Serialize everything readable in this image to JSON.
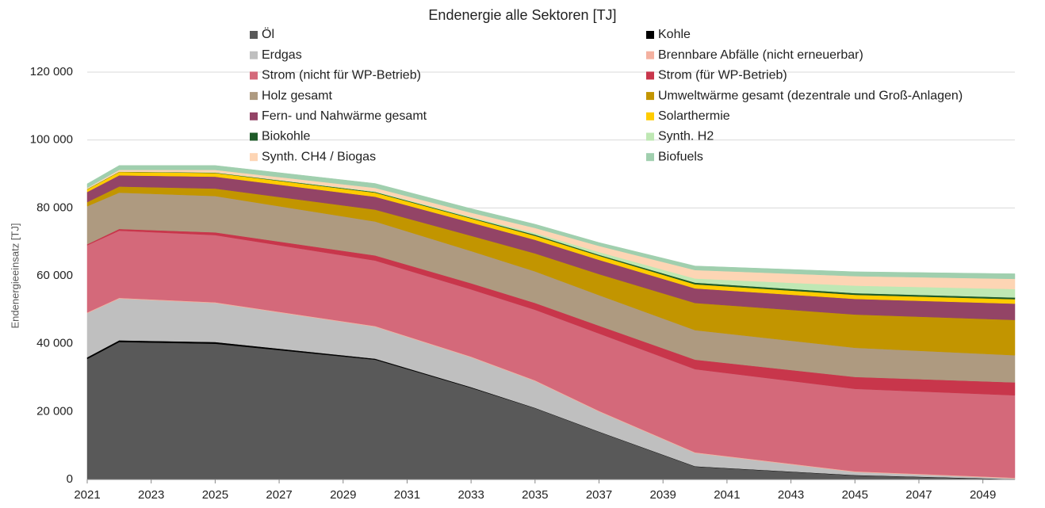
{
  "chart_data": {
    "type": "stacked_area",
    "title": "Endenergie alle Sektoren [TJ]",
    "y_label": "Endenergieeinsatz [TJ]",
    "x": [
      2021,
      2022,
      2025,
      2030,
      2033,
      2035,
      2037,
      2040,
      2045,
      2050
    ],
    "xlim": [
      2021,
      2050
    ],
    "xticks": [
      2021,
      2023,
      2025,
      2027,
      2029,
      2031,
      2033,
      2035,
      2037,
      2039,
      2041,
      2043,
      2045,
      2047,
      2049
    ],
    "ylim": [
      0,
      120000
    ],
    "yticks": [
      0,
      {
        "value": 20000,
        "label": "20 000"
      },
      {
        "value": 40000,
        "label": "40 000"
      },
      {
        "value": 60000,
        "label": "60 000"
      },
      {
        "value": 80000,
        "label": "80 000"
      },
      {
        "value": 100000,
        "label": "100 000"
      },
      {
        "value": 120000,
        "label": "120 000"
      }
    ],
    "grid": true,
    "series": [
      {
        "name": "Öl",
        "color": "#595959",
        "values": [
          35500,
          40500,
          40000,
          35300,
          27000,
          21000,
          14000,
          3800,
          1200,
          0
        ]
      },
      {
        "name": "Kohle",
        "color": "#000000",
        "values": [
          500,
          500,
          500,
          300,
          200,
          100,
          100,
          100,
          100,
          100
        ]
      },
      {
        "name": "Erdgas",
        "color": "#bfbfbf",
        "values": [
          13000,
          12300,
          11500,
          9400,
          8800,
          7900,
          5900,
          3900,
          900,
          200
        ]
      },
      {
        "name": "Brennbare Abfälle (nicht erneuerbar)",
        "color": "#f4b1a0",
        "values": [
          200,
          200,
          200,
          200,
          200,
          200,
          200,
          200,
          200,
          200
        ]
      },
      {
        "name": "Strom (nicht für WP-Betrieb)",
        "color": "#d4697a",
        "values": [
          19800,
          19800,
          19800,
          19300,
          19800,
          20800,
          22800,
          24500,
          24300,
          24300
        ]
      },
      {
        "name": "Strom (für WP-Betrieb)",
        "color": "#c8364b",
        "values": [
          300,
          500,
          800,
          1500,
          1800,
          2000,
          2300,
          2800,
          3500,
          3800
        ]
      },
      {
        "name": "Holz gesamt",
        "color": "#ae9a80",
        "values": [
          11200,
          10700,
          10700,
          10000,
          9500,
          9300,
          9000,
          8700,
          8600,
          8000
        ]
      },
      {
        "name": "Umweltwärme gesamt (dezentrale und Groß-Anlagen)",
        "color": "#c29500",
        "values": [
          1200,
          1800,
          2200,
          3500,
          4500,
          5300,
          6200,
          8000,
          9800,
          10400
        ]
      },
      {
        "name": "Fern- und Nahwärme gesamt",
        "color": "#934466",
        "values": [
          3000,
          3300,
          3500,
          3800,
          3900,
          4000,
          4200,
          4300,
          4600,
          4800
        ]
      },
      {
        "name": "Solarthermie",
        "color": "#ffcc00",
        "values": [
          800,
          1000,
          1100,
          1200,
          1200,
          1200,
          1200,
          1200,
          1200,
          1300
        ]
      },
      {
        "name": "Biokohle",
        "color": "#1e5a28",
        "values": [
          100,
          100,
          100,
          200,
          200,
          300,
          300,
          500,
          500,
          500
        ]
      },
      {
        "name": "Synth. H2",
        "color": "#bfe8b4",
        "values": [
          0,
          0,
          100,
          200,
          300,
          500,
          800,
          1200,
          2200,
          2500
        ]
      },
      {
        "name": "Synth. CH4 / Biogas",
        "color": "#fdd5b4",
        "values": [
          300,
          500,
          700,
          1000,
          1200,
          1500,
          1800,
          2500,
          2800,
          3000
        ]
      },
      {
        "name": "Biofuels",
        "color": "#a0cfae",
        "values": [
          1200,
          1300,
          1300,
          1300,
          1200,
          1100,
          1000,
          1200,
          1300,
          1500
        ]
      }
    ]
  }
}
